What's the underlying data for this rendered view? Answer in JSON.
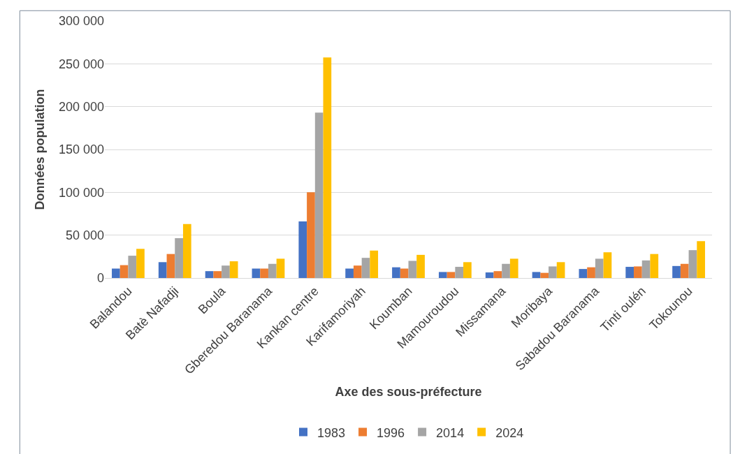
{
  "chart_data": {
    "type": "bar",
    "xlabel": "Axe des sous-préfecture",
    "ylabel": "Données population",
    "categories": [
      "Balandou",
      "Batè Nafadji",
      "Boula",
      "Gberedou Baranama",
      "Kankan centre",
      "Karifamoriyah",
      "Koumban",
      "Mamouroudou",
      "Missamana",
      "Moribaya",
      "Sabadou Baranama",
      "Tinti oulén",
      "Tokounou"
    ],
    "series": [
      {
        "name": "1983",
        "color": "#4472c4",
        "values": [
          11000,
          18500,
          8000,
          11000,
          66000,
          11000,
          12500,
          7000,
          6500,
          7000,
          10500,
          13000,
          14000
        ]
      },
      {
        "name": "1996",
        "color": "#ed7d31",
        "values": [
          15000,
          28000,
          8000,
          11000,
          100000,
          14500,
          11000,
          7000,
          8000,
          6000,
          12500,
          13500,
          16500
        ]
      },
      {
        "name": "2014",
        "color": "#a5a5a5",
        "values": [
          26000,
          46500,
          14500,
          16500,
          193000,
          23500,
          20000,
          13000,
          16500,
          13500,
          22500,
          20500,
          32500
        ]
      },
      {
        "name": "2024",
        "color": "#ffc000",
        "values": [
          34000,
          63000,
          19500,
          22500,
          257500,
          32000,
          27000,
          18500,
          22500,
          18500,
          30000,
          28000,
          43000
        ]
      }
    ],
    "ylim": [
      0,
      300000
    ],
    "yticks": [
      {
        "value": 0,
        "label": "0"
      },
      {
        "value": 50000,
        "label": "50 000"
      },
      {
        "value": 100000,
        "label": "100 000"
      },
      {
        "value": 150000,
        "label": "150 000"
      },
      {
        "value": 200000,
        "label": "200 000"
      },
      {
        "value": 250000,
        "label": "250 000"
      },
      {
        "value": 300000,
        "label": "300 000"
      }
    ],
    "grid": "y",
    "legend": "bottom"
  }
}
